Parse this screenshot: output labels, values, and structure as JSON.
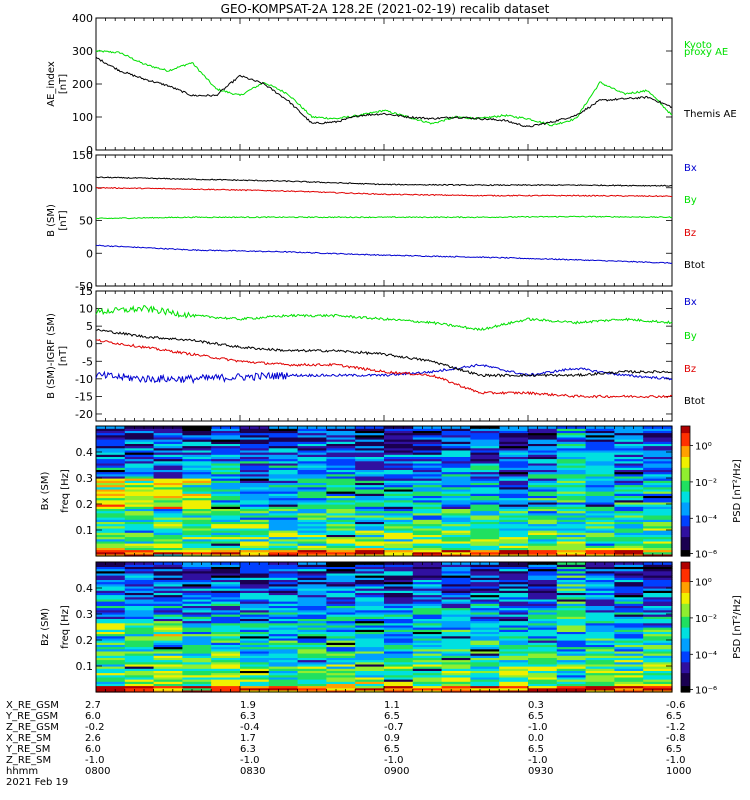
{
  "title": "GEO-KOMPSAT-2A 128.2E (2021-02-19) recalib dataset",
  "colors": {
    "black": "#000000",
    "green": "#00e000",
    "blue": "#0000d0",
    "red": "#e00000",
    "colorbar": [
      "#000000",
      "#1a0050",
      "#3010a0",
      "#0040ff",
      "#00a0ff",
      "#00e0e0",
      "#20e060",
      "#90ee30",
      "#f0f000",
      "#ffa000",
      "#ff3000",
      "#b00000"
    ]
  },
  "chart_data": [
    {
      "type": "line",
      "ylabel": "AE_index\n[nT]",
      "ylim": [
        0,
        400
      ],
      "yticks": [
        "0",
        "100",
        "200",
        "300",
        "400"
      ],
      "x_time_range": [
        "0800",
        "1000"
      ],
      "series": [
        {
          "name": "Kyoto\nproxy AE",
          "color": "green",
          "x": [
            0,
            5,
            10,
            15,
            20,
            25,
            30,
            35,
            40,
            45,
            50,
            55,
            60,
            65,
            70,
            75,
            80,
            85,
            90,
            95,
            100,
            105,
            110,
            115,
            120
          ],
          "values": [
            300,
            295,
            260,
            240,
            265,
            185,
            165,
            205,
            170,
            100,
            95,
            105,
            120,
            100,
            80,
            100,
            95,
            105,
            95,
            75,
            95,
            205,
            170,
            180,
            105
          ]
        },
        {
          "name": "Themis AE",
          "color": "black",
          "x": [
            0,
            5,
            10,
            15,
            20,
            25,
            30,
            35,
            40,
            45,
            50,
            55,
            60,
            65,
            70,
            75,
            80,
            85,
            90,
            95,
            100,
            105,
            110,
            115,
            120
          ],
          "values": [
            280,
            240,
            215,
            195,
            165,
            165,
            225,
            200,
            150,
            80,
            85,
            105,
            110,
            100,
            95,
            100,
            95,
            90,
            70,
            85,
            105,
            150,
            155,
            160,
            130
          ]
        }
      ]
    },
    {
      "type": "line",
      "ylabel": "B (SM)\n[nT]",
      "ylim": [
        -50,
        150
      ],
      "yticks": [
        "-50",
        "0",
        "50",
        "100",
        "150"
      ],
      "x_time_range": [
        "0800",
        "1000"
      ],
      "series": [
        {
          "name": "Bx",
          "color": "blue",
          "x": [
            0,
            20,
            40,
            60,
            80,
            100,
            120
          ],
          "values": [
            12,
            5,
            2,
            -3,
            -6,
            -10,
            -15
          ]
        },
        {
          "name": "By",
          "color": "green",
          "x": [
            0,
            20,
            40,
            60,
            80,
            100,
            120
          ],
          "values": [
            53,
            55,
            55,
            55,
            55,
            56,
            55
          ]
        },
        {
          "name": "Bz",
          "color": "red",
          "x": [
            0,
            20,
            40,
            60,
            80,
            100,
            120
          ],
          "values": [
            100,
            98,
            95,
            90,
            88,
            88,
            87
          ]
        },
        {
          "name": "Btot",
          "color": "black",
          "x": [
            0,
            20,
            40,
            60,
            80,
            100,
            120
          ],
          "values": [
            116,
            113,
            110,
            105,
            104,
            104,
            103
          ]
        }
      ]
    },
    {
      "type": "line",
      "ylabel": "B (SM)-IGRF (SM)\n[nT]",
      "ylim": [
        -22,
        15
      ],
      "yticks": [
        "-20",
        "-15",
        "-10",
        "-5",
        "0",
        "5",
        "10",
        "15"
      ],
      "x_time_range": [
        "0800",
        "1000"
      ],
      "series": [
        {
          "name": "Bx",
          "color": "blue",
          "x": [
            0,
            10,
            20,
            30,
            40,
            50,
            60,
            70,
            80,
            90,
            100,
            110,
            120
          ],
          "values": [
            -9,
            -10,
            -10,
            -9.5,
            -9,
            -9,
            -9,
            -8,
            -6,
            -9,
            -7,
            -9,
            -10
          ]
        },
        {
          "name": "By",
          "color": "green",
          "x": [
            0,
            10,
            20,
            30,
            40,
            50,
            60,
            70,
            80,
            90,
            100,
            110,
            120
          ],
          "values": [
            9,
            10,
            8,
            7,
            8,
            8,
            7,
            6,
            4,
            7,
            6,
            7,
            6
          ]
        },
        {
          "name": "Bz",
          "color": "red",
          "x": [
            0,
            10,
            20,
            30,
            40,
            50,
            60,
            70,
            80,
            90,
            100,
            110,
            120
          ],
          "values": [
            1,
            -1,
            -3,
            -5,
            -6,
            -6,
            -8,
            -9,
            -14,
            -14,
            -15,
            -15,
            -15
          ]
        },
        {
          "name": "Btot",
          "color": "black",
          "x": [
            0,
            10,
            20,
            30,
            40,
            50,
            60,
            70,
            80,
            90,
            100,
            110,
            120
          ],
          "values": [
            4,
            2,
            1,
            -1,
            -2,
            -2,
            -3,
            -5,
            -9,
            -9,
            -9,
            -8,
            -8
          ]
        }
      ]
    },
    {
      "type": "heatmap",
      "ylabel": "Bx (SM)\nfreq [Hz]",
      "ylim": [
        0,
        0.5
      ],
      "yticks": [
        "0.1",
        "0.2",
        "0.3",
        "0.4"
      ],
      "colorbar_label": "PSD [nT²/Hz]",
      "colorbar_ticks": [
        "10⁰",
        "10⁻²",
        "10⁻⁴",
        "10⁻⁶"
      ]
    },
    {
      "type": "heatmap",
      "ylabel": "Bz (SM)\nfreq [Hz]",
      "ylim": [
        0,
        0.5
      ],
      "yticks": [
        "0.1",
        "0.2",
        "0.3",
        "0.4"
      ],
      "colorbar_label": "PSD [nT²/Hz]",
      "colorbar_ticks": [
        "10⁰",
        "10⁻²",
        "10⁻⁴",
        "10⁻⁶"
      ]
    }
  ],
  "ephemeris": {
    "labels": [
      "X_RE_GSM",
      "Y_RE_GSM",
      "Z_RE_GSM",
      "X_RE_SM",
      "Y_RE_SM",
      "Z_RE_SM",
      "hhmm",
      "2021 Feb 19"
    ],
    "columns": [
      [
        "2.7",
        "6.0",
        "-0.2",
        "2.6",
        "6.0",
        "-1.0",
        "0800"
      ],
      [
        "1.9",
        "6.3",
        "-0.4",
        "1.7",
        "6.3",
        "-1.0",
        "0830"
      ],
      [
        "1.1",
        "6.5",
        "-0.7",
        "0.9",
        "6.5",
        "-1.0",
        "0900"
      ],
      [
        "0.3",
        "6.5",
        "-1.0",
        "0.0",
        "6.5",
        "-1.0",
        "0930"
      ],
      [
        "-0.6",
        "6.5",
        "-1.2",
        "-0.8",
        "6.5",
        "-1.0",
        "1000"
      ]
    ]
  }
}
